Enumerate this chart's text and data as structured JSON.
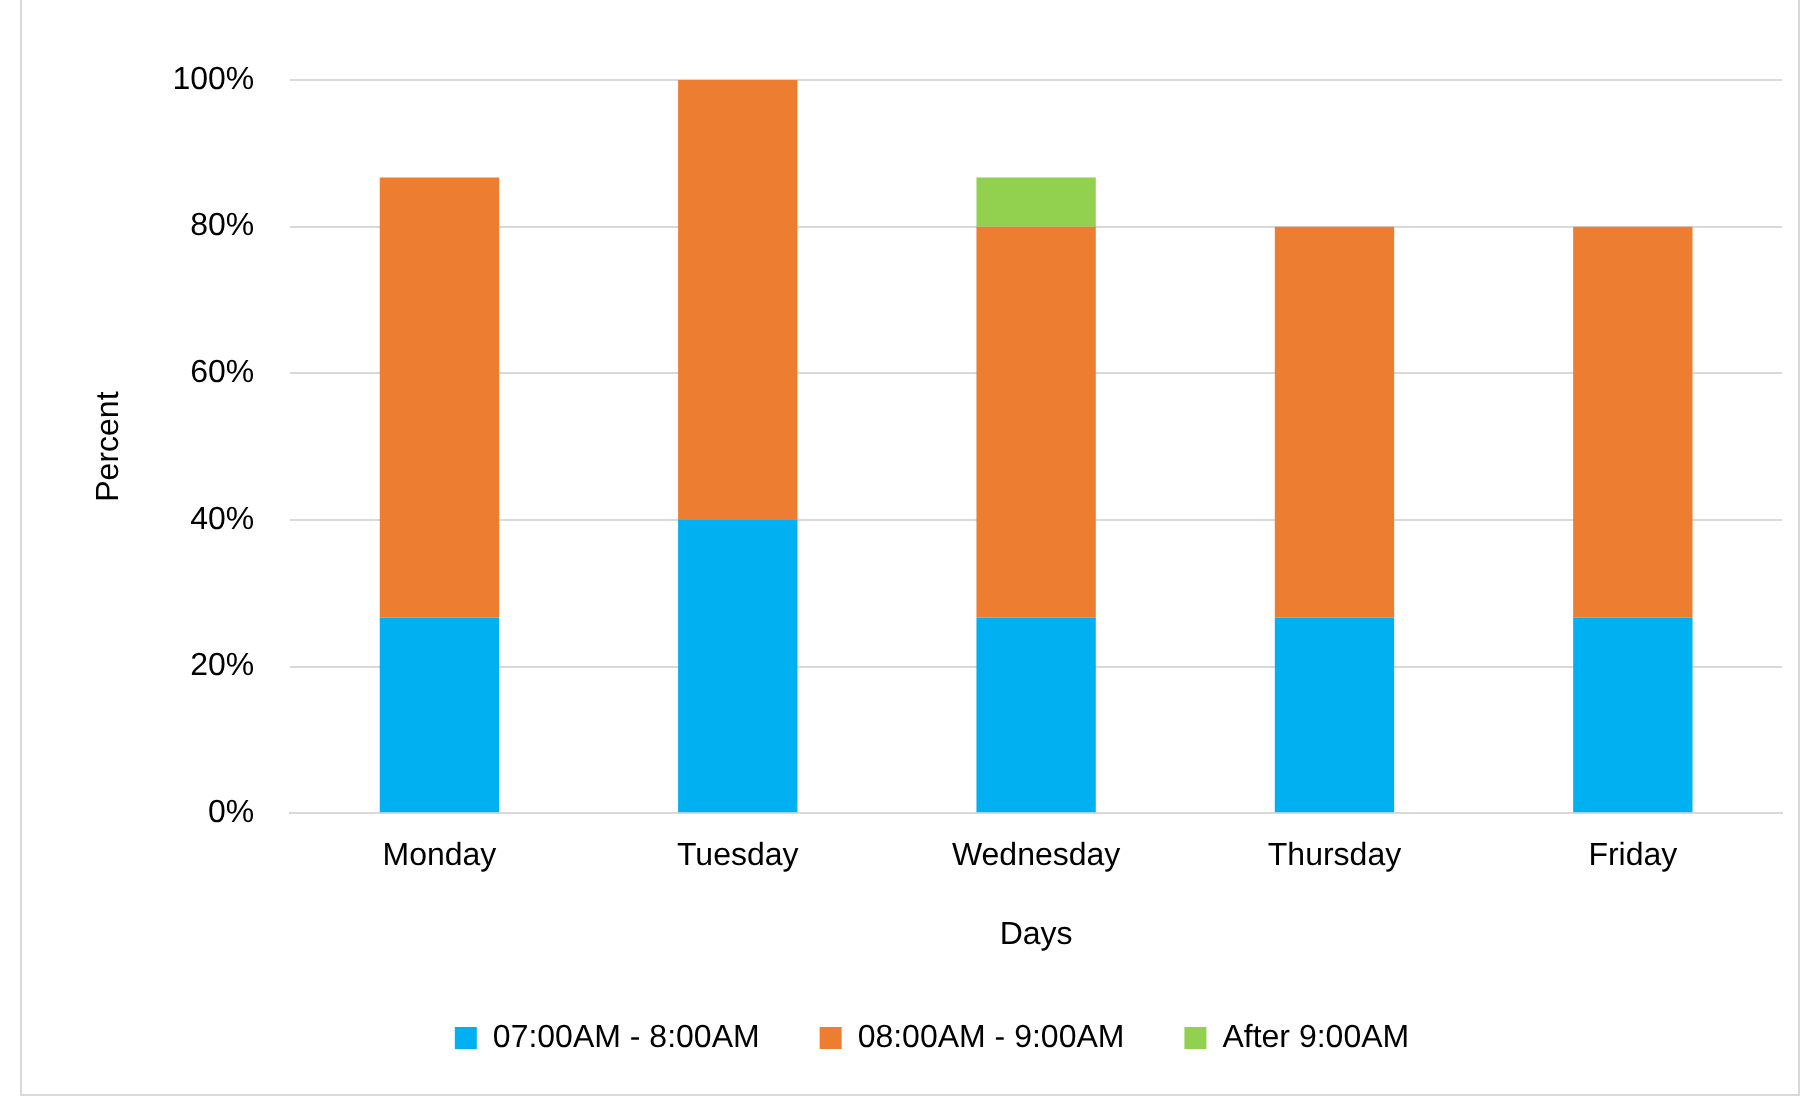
{
  "chart_data": {
    "type": "bar",
    "stacked": true,
    "xlabel": "Days",
    "ylabel": "Percent",
    "categories": [
      "Monday",
      "Tuesday",
      "Wednesday",
      "Thursday",
      "Friday"
    ],
    "series": [
      {
        "name": "07:00AM - 8:00AM",
        "color": "#00b0f0",
        "values": [
          26.7,
          40,
          26.7,
          26.7,
          26.7
        ]
      },
      {
        "name": "08:00AM - 9:00AM",
        "color": "#ed7d31",
        "values": [
          60,
          60,
          53.3,
          53.3,
          53.3
        ]
      },
      {
        "name": "After 9:00AM",
        "color": "#92d050",
        "values": [
          0,
          0,
          6.7,
          0,
          0
        ]
      }
    ],
    "ylim": [
      0,
      100
    ],
    "yticks": [
      {
        "value": 0,
        "label": "0%"
      },
      {
        "value": 20,
        "label": "20%"
      },
      {
        "value": 40,
        "label": "40%"
      },
      {
        "value": 60,
        "label": "60%"
      },
      {
        "value": 80,
        "label": "80%"
      },
      {
        "value": 100,
        "label": "100%"
      }
    ],
    "grid": "y",
    "legend": "bottom"
  }
}
